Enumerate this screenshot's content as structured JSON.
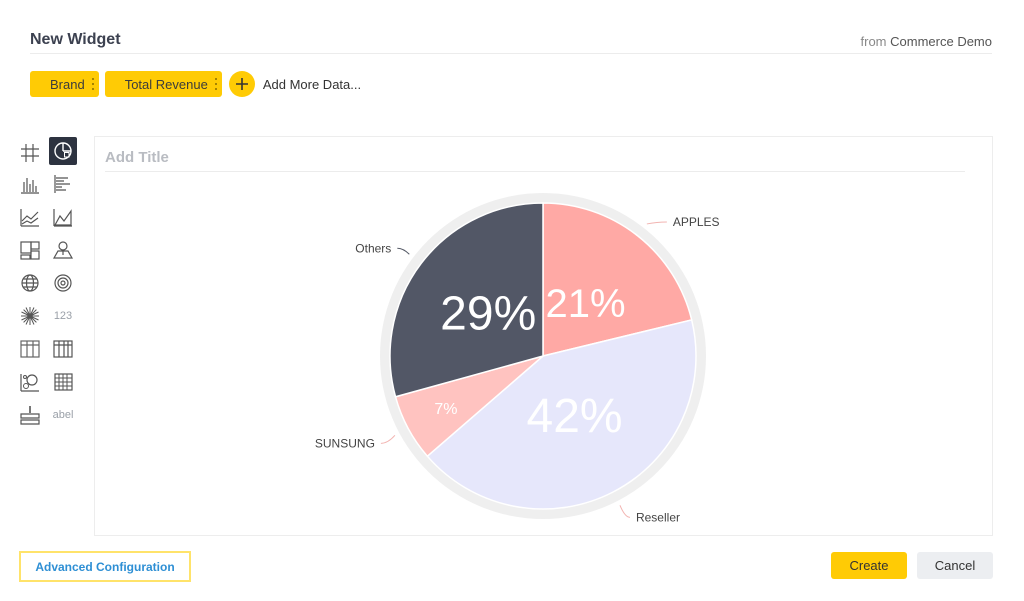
{
  "header": {
    "title": "New Widget",
    "source_prefix": "from",
    "source_name": "Commerce Demo"
  },
  "data_pills": [
    {
      "label": "Brand"
    },
    {
      "label": "Total Revenue"
    }
  ],
  "add_more_label": "Add More Data...",
  "chart_type_icons": [
    "grid-icon",
    "pie-chart-icon",
    "column-chart-icon",
    "bar-chart-icon",
    "line-chart-icon",
    "area-chart-icon",
    "treemap-icon",
    "map-pin-icon",
    "globe-icon",
    "target-icon",
    "starburst-icon",
    "number-icon",
    "table-icon",
    "pivot-table-icon",
    "scatter-icon",
    "heatmap-icon",
    "indicator-icon",
    "label-icon"
  ],
  "chart_type_texts": {
    "number": "123",
    "label": "abel"
  },
  "canvas": {
    "title_placeholder": "Add Title"
  },
  "chart_data": {
    "type": "pie",
    "slices": [
      {
        "name": "APPLES",
        "percent": 21,
        "label": "21%",
        "color": "#ffa9a5"
      },
      {
        "name": "Reseller",
        "percent": 42,
        "label": "42%",
        "color": "#e6e7fb"
      },
      {
        "name": "SUNSUNG",
        "percent": 7,
        "label": "7%",
        "color": "#ffc3c0"
      },
      {
        "name": "Others",
        "percent": 29,
        "label": "29%",
        "color": "#525766"
      }
    ]
  },
  "footer": {
    "advanced_label": "Advanced Configuration",
    "create_label": "Create",
    "cancel_label": "Cancel"
  },
  "colors": {
    "accent": "#ffcb05",
    "link": "#2e8fd4",
    "highlight_border": "#ffe36a"
  }
}
